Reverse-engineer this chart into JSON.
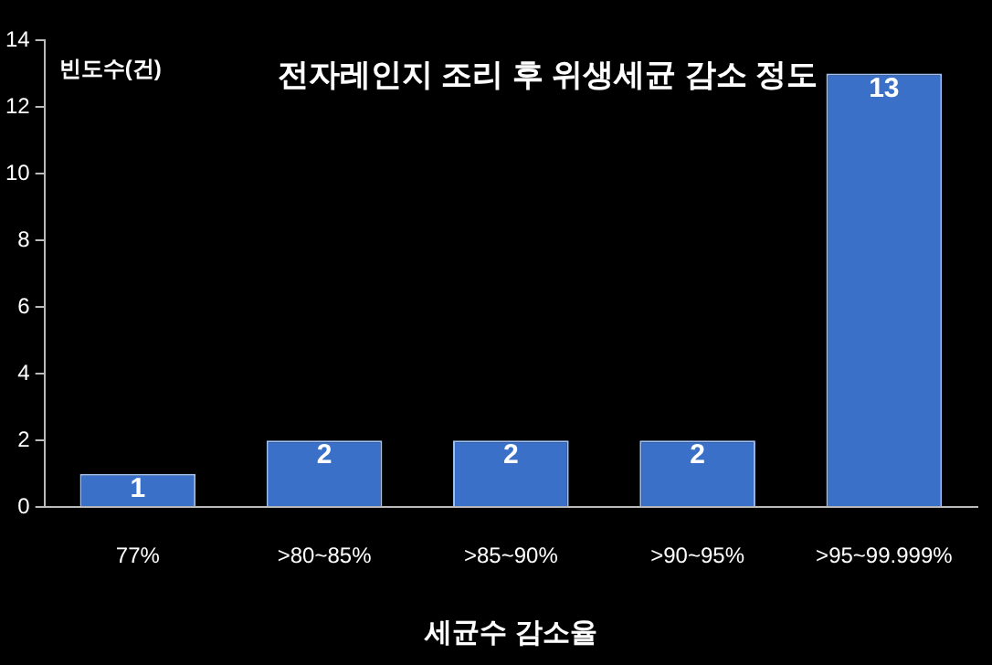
{
  "chart_data": {
    "type": "bar",
    "title": "전자레인지 조리 후 위생세균 감소 정도",
    "ylabel": "빈도수(건)",
    "xlabel": "세균수 감소율",
    "categories": [
      "77%",
      ">80~85%",
      ">85~90%",
      ">90~95%",
      ">95~99.999%"
    ],
    "values": [
      1,
      2,
      2,
      2,
      13
    ],
    "color": "#3b70c9",
    "ylim": [
      0,
      14
    ],
    "yticks": [
      0,
      2,
      4,
      6,
      8,
      10,
      12,
      14
    ],
    "grid": false,
    "data_labels": true
  }
}
